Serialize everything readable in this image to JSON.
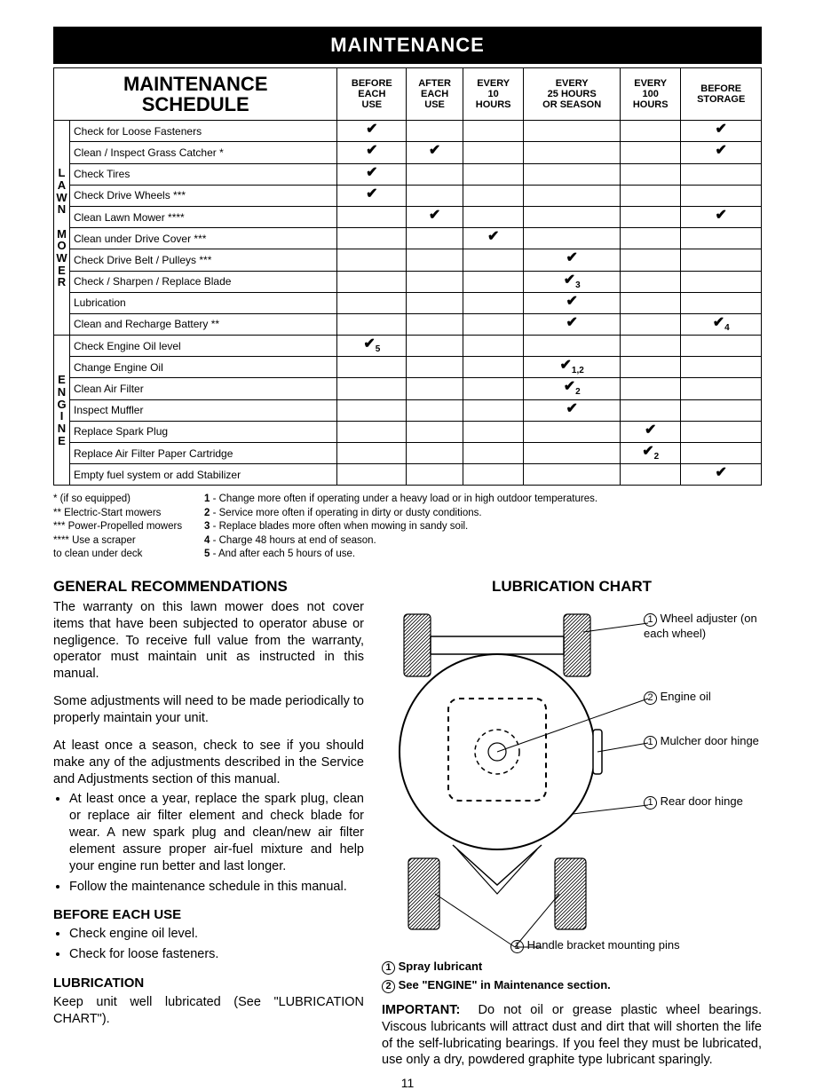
{
  "banner": "MAINTENANCE",
  "table": {
    "title_line1": "MAINTENANCE",
    "title_line2": "SCHEDULE",
    "columns": [
      "BEFORE\nEACH\nUSE",
      "AFTER\nEACH\nUSE",
      "EVERY\n10\nHOURS",
      "EVERY\n25 HOURS\nOR SEASON",
      "EVERY\n100\nHOURS",
      "BEFORE\nSTORAGE"
    ],
    "group1_label": "L\nA\nW\nN\n \nM\nO\nW\nE\nR",
    "group1": [
      {
        "task": "Check for Loose Fasteners",
        "marks": [
          "✔",
          "",
          "",
          "",
          "",
          "✔"
        ]
      },
      {
        "task": "Clean / Inspect Grass Catcher *",
        "marks": [
          "✔",
          "✔",
          "",
          "",
          "",
          "✔"
        ]
      },
      {
        "task": "Check Tires",
        "marks": [
          "✔",
          "",
          "",
          "",
          "",
          ""
        ]
      },
      {
        "task": "Check Drive Wheels ***",
        "marks": [
          "✔",
          "",
          "",
          "",
          "",
          ""
        ]
      },
      {
        "task": "Clean Lawn Mower ****",
        "marks": [
          "",
          "✔",
          "",
          "",
          "",
          "✔"
        ]
      },
      {
        "task": "Clean under Drive Cover ***",
        "marks": [
          "",
          "",
          "✔",
          "",
          "",
          ""
        ]
      },
      {
        "task": "Check Drive Belt / Pulleys ***",
        "marks": [
          "",
          "",
          "",
          "✔",
          "",
          ""
        ]
      },
      {
        "task": "Check / Sharpen / Replace Blade",
        "marks": [
          "",
          "",
          "",
          "✔3",
          "",
          ""
        ]
      },
      {
        "task": "Lubrication",
        "marks": [
          "",
          "",
          "",
          "✔",
          "",
          ""
        ]
      },
      {
        "task": "Clean and Recharge Battery **",
        "marks": [
          "",
          "",
          "",
          "✔",
          "",
          "✔4"
        ]
      }
    ],
    "group2_label": "E\nN\nG\nI\nN\nE",
    "group2": [
      {
        "task": "Check Engine Oil level",
        "marks": [
          "✔5",
          "",
          "",
          "",
          "",
          ""
        ]
      },
      {
        "task": "Change Engine Oil",
        "marks": [
          "",
          "",
          "",
          "✔1,2",
          "",
          ""
        ]
      },
      {
        "task": "Clean Air Filter",
        "marks": [
          "",
          "",
          "",
          "✔2",
          "",
          ""
        ]
      },
      {
        "task": "Inspect Muffler",
        "marks": [
          "",
          "",
          "",
          "✔",
          "",
          ""
        ]
      },
      {
        "task": "Replace Spark Plug",
        "marks": [
          "",
          "",
          "",
          "",
          "✔",
          ""
        ]
      },
      {
        "task": "Replace Air Filter Paper Cartridge",
        "marks": [
          "",
          "",
          "",
          "",
          "✔2",
          ""
        ]
      },
      {
        "task": "Empty fuel system or add Stabilizer",
        "marks": [
          "",
          "",
          "",
          "",
          "",
          "✔"
        ]
      }
    ]
  },
  "footnotes_left": [
    "* (if so equipped)",
    "** Electric-Start mowers",
    "*** Power-Propelled mowers",
    "**** Use a scraper",
    "     to clean under deck"
  ],
  "footnotes_right": [
    "1 - Change more often if operating under a heavy load or in high outdoor temperatures.",
    "2 - Service more often if operating in dirty or dusty conditions.",
    "3 - Replace blades more often when mowing in sandy soil.",
    "4 - Charge 48 hours at end of season.",
    "5 - And after each 5 hours of use."
  ],
  "general": {
    "heading": "GENERAL RECOMMENDATIONS",
    "p1": "The warranty on this lawn mower does not cover items that have been subjected to operator abuse or negligence.  To receive full value from the warranty, operator must maintain unit as instructed in this manual.",
    "p2": "Some adjustments will need to be made periodically to properly maintain your unit.",
    "p3": "At least once a season, check to see if you should make any of the adjustments described in the Service and Adjustments section of this manual.",
    "bullets": [
      "At least once a year, replace the spark plug, clean or replace air filter element and check blade for wear.  A new spark plug and clean/new air filter element assure proper air-fuel mixture and help your engine run better and last longer.",
      "Follow the maintenance schedule in this manual."
    ]
  },
  "before_use": {
    "heading": "BEFORE EACH USE",
    "bullets": [
      "Check engine oil level.",
      "Check for loose fasteners."
    ]
  },
  "lubrication_section": {
    "heading": "LUBRICATION",
    "p": "Keep unit well lubricated (See \"LUBRICATION CHART\")."
  },
  "lube_chart": {
    "heading": "LUBRICATION CHART",
    "labels": {
      "wheel_adj": "Wheel adjuster (on each wheel)",
      "engine_oil": "Engine oil",
      "mulcher": "Mulcher door hinge",
      "rear_door": "Rear door hinge",
      "handle": "Handle bracket mounting pins"
    },
    "key1": "Spray lubricant",
    "key2": "See \"ENGINE\" in Maintenance section."
  },
  "important": {
    "heading": "IMPORTANT:",
    "body": "Do not oil or grease plastic wheel bearings.  Viscous lubricants will attract dust and dirt that will shorten the life of the self-lubricating bearings.  If you feel they must be lubricated, use only a dry, powdered graphite type lubricant sparingly."
  },
  "page_number": "11"
}
